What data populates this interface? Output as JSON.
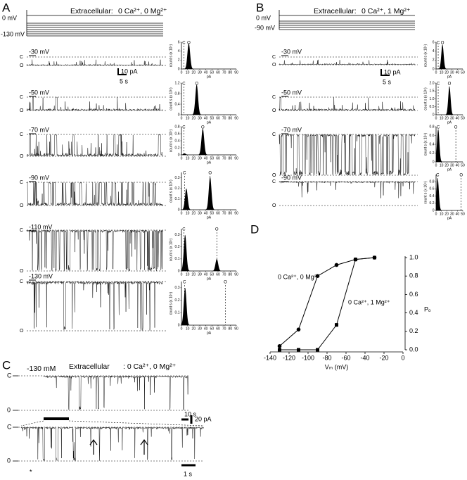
{
  "panel_a": {
    "label": "A",
    "protocol_top": "0 mV",
    "protocol_bottom": "-130 mV",
    "title": "Extracellular:",
    "solution": "0 Ca²⁺, 0 Mg²⁺",
    "closed_label": "C",
    "open_label": "O",
    "scale_current": "10 pA",
    "scale_time": "5 s",
    "hist_xlim": [
      0,
      90
    ],
    "hist_xticks": [
      0,
      10,
      20,
      30,
      40,
      50,
      60,
      70,
      80,
      90
    ],
    "hist_xlabel": "pA",
    "hist_ylabel": "count s (x 10⁵)",
    "rows": [
      {
        "label": "-30 mV",
        "hist": {
          "ylim": [
            0,
            6
          ],
          "yticks": [
            0,
            2,
            4,
            6
          ],
          "markers": [
            {
              "label": "C",
              "x": 4
            },
            {
              "label": "O",
              "x": 12
            }
          ],
          "peaks": [
            {
              "x": 12,
              "height": 5.8
            }
          ]
        }
      },
      {
        "label": "-50 mV",
        "hist": {
          "ylim": [
            0,
            1.2
          ],
          "yticks": [
            0,
            0.4,
            0.8,
            1.2
          ],
          "markers": [
            {
              "label": "C",
              "x": 4
            },
            {
              "label": "O",
              "x": 25
            }
          ],
          "peaks": [
            {
              "x": 25,
              "height": 1.15
            }
          ]
        }
      },
      {
        "label": "-70 mV",
        "hist": {
          "ylim": [
            0,
            0.8
          ],
          "yticks": [
            0,
            0.2,
            0.4,
            0.6,
            0.8
          ],
          "markers": [
            {
              "label": "C",
              "x": 4
            },
            {
              "label": "O",
              "x": 35
            }
          ],
          "peaks": [
            {
              "x": 5,
              "height": 0.04
            },
            {
              "x": 35,
              "height": 0.75
            }
          ]
        }
      },
      {
        "label": "-90 mV",
        "hist": {
          "ylim": [
            0,
            0.35
          ],
          "yticks": [
            0,
            0.1,
            0.2,
            0.3
          ],
          "markers": [
            {
              "label": "C",
              "x": 5
            },
            {
              "label": "O",
              "x": 47
            }
          ],
          "peaks": [
            {
              "x": 8,
              "height": 0.2
            },
            {
              "x": 47,
              "height": 0.31
            }
          ]
        }
      },
      {
        "label": "-110 mV",
        "hist": {
          "ylim": [
            0,
            0.35
          ],
          "yticks": [
            0,
            0.1,
            0.2,
            0.3
          ],
          "markers": [
            {
              "label": "C",
              "x": 4
            },
            {
              "label": "O",
              "x": 58
            }
          ],
          "peaks": [
            {
              "x": 6,
              "height": 0.3
            },
            {
              "x": 58,
              "height": 0.1
            }
          ]
        }
      },
      {
        "label": "-130 mV",
        "hist": {
          "ylim": [
            0,
            0.35
          ],
          "yticks": [
            0,
            0.1,
            0.2,
            0.3
          ],
          "markers": [
            {
              "label": "C",
              "x": 5
            },
            {
              "label": "O",
              "x": 72
            }
          ],
          "peaks": [
            {
              "x": 6,
              "height": 0.3
            }
          ]
        }
      }
    ]
  },
  "panel_b": {
    "label": "B",
    "protocol_top": "0 mV",
    "protocol_bottom": "-90 mV",
    "title": "Extracellular:",
    "solution": "0 Ca²⁺, 1 Mg²⁺",
    "closed_label": "C",
    "open_label": "O",
    "scale_current": "10 pA",
    "scale_time": "5 s",
    "hist_xlim": [
      0,
      50
    ],
    "hist_xticks": [
      0,
      10,
      20,
      30,
      40,
      50
    ],
    "hist_xlabel": "pA",
    "hist_ylabel": "count s (x 10⁵)",
    "rows": [
      {
        "label": "-30 mV",
        "hist": {
          "ylim": [
            0,
            6
          ],
          "yticks": [
            0,
            2,
            4,
            6
          ],
          "markers": [
            {
              "label": "C",
              "x": 4
            },
            {
              "label": "O",
              "x": 12
            }
          ],
          "peaks": [
            {
              "x": 12,
              "height": 5.5
            }
          ]
        }
      },
      {
        "label": "-50 mV",
        "hist": {
          "ylim": [
            0,
            2
          ],
          "yticks": [
            0,
            0.5,
            {
              "value": 1,
              "label": "1.0"
            },
            1.5,
            {
              "value": 2,
              "label": "2.0"
            }
          ],
          "markers": [
            {
              "label": "C",
              "x": 4
            },
            {
              "label": "O",
              "x": 25
            }
          ],
          "peaks": [
            {
              "x": 25,
              "height": 1.8
            }
          ]
        }
      },
      {
        "label": "-70 mV",
        "hist": {
          "ylim": [
            0,
            0.8
          ],
          "yticks": [
            0,
            0.2,
            0.4,
            0.6,
            0.8
          ],
          "markers": [
            {
              "label": "C",
              "x": 4
            },
            {
              "label": "O",
              "x": 37
            }
          ],
          "peaks": [
            {
              "x": 4,
              "height": 0.75
            }
          ]
        }
      },
      {
        "label": "-90 mV",
        "hist": {
          "ylim": [
            0,
            1
          ],
          "yticks": [
            0,
            0.2,
            0.4,
            0.6,
            0.8
          ],
          "markers": [
            {
              "label": "C",
              "x": 3
            },
            {
              "label": "O",
              "x": 47
            }
          ],
          "peaks": [
            {
              "x": 3,
              "height": 0.9
            }
          ]
        }
      }
    ]
  },
  "panel_c": {
    "label": "C",
    "voltage": "-130 mM",
    "title": "Extracellular",
    "solution": ": 0 Ca²⁺, 0 Mg²⁺",
    "closed_label": "C",
    "open_label": "0",
    "scale_time_top": "10 s",
    "scale_current": "20 pA",
    "scale_time_bottom": "1 s",
    "asterisk": "*"
  },
  "chart_data": {
    "type": "line",
    "panel_label": "D",
    "x_label": "Vₘ (mV)",
    "y_label": "Pₒ",
    "xlim": [
      -140,
      0
    ],
    "xticks": [
      -140,
      -120,
      -100,
      -80,
      -60,
      -40,
      -20,
      0
    ],
    "ylim": [
      0,
      1
    ],
    "yticks": [
      {
        "value": 0,
        "label": "0.0"
      },
      0.2,
      0.4,
      0.6,
      0.8,
      {
        "value": 1,
        "label": "1.0"
      }
    ],
    "x": [
      -130,
      -110,
      -90,
      -70,
      -50,
      -30
    ],
    "series": [
      {
        "name": "0 Ca²⁺,  0 Mg²⁺",
        "color": "#000000",
        "marker": "circle",
        "values": [
          0.04,
          0.22,
          0.8,
          0.92,
          0.98,
          1.0
        ]
      },
      {
        "name": "0 Ca²⁺,  1 Mg²⁺",
        "color": "#000000",
        "marker": "square",
        "values": [
          0,
          0,
          0,
          0.27,
          0.98,
          1.0
        ]
      }
    ]
  }
}
